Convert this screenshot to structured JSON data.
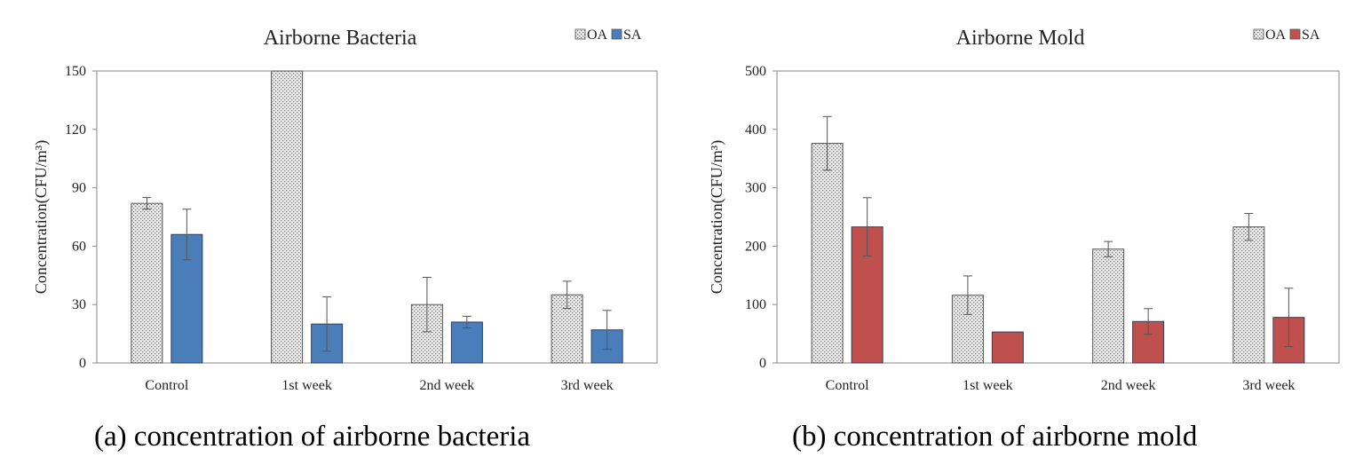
{
  "chart_data": [
    {
      "type": "bar",
      "title": "Airborne Bacteria",
      "ylabel": "Concentration(CFU/m³)",
      "xlabel": "",
      "categories": [
        "Control",
        "1st week",
        "2nd week",
        "3rd week"
      ],
      "ylim": [
        0,
        150
      ],
      "yticks": [
        0,
        30,
        60,
        90,
        120,
        150
      ],
      "grid": false,
      "legend_position": "top-right",
      "series": [
        {
          "name": "OA",
          "values": [
            82,
            150,
            30,
            35
          ],
          "errors": [
            3,
            0,
            14,
            7
          ],
          "color": "#e4e4e4",
          "pattern": "dotted"
        },
        {
          "name": "SA",
          "values": [
            66,
            20,
            21,
            17
          ],
          "errors": [
            13,
            14,
            3,
            10
          ],
          "color": "#4a7ebb",
          "pattern": "solid"
        }
      ],
      "caption": "(a) concentration of airborne bacteria"
    },
    {
      "type": "bar",
      "title": "Airborne Mold",
      "ylabel": "Concentration(CFU/m³)",
      "xlabel": "",
      "categories": [
        "Control",
        "1st week",
        "2nd week",
        "3rd week"
      ],
      "ylim": [
        0,
        500
      ],
      "yticks": [
        0,
        100,
        200,
        300,
        400,
        500
      ],
      "grid": false,
      "legend_position": "top-right",
      "series": [
        {
          "name": "OA",
          "values": [
            376,
            116,
            195,
            233
          ],
          "errors": [
            46,
            33,
            13,
            23
          ],
          "color": "#dcdcdc",
          "pattern": "dotted"
        },
        {
          "name": "SA",
          "values": [
            233,
            53,
            71,
            78
          ],
          "errors": [
            50,
            0,
            22,
            50
          ],
          "color": "#c0504d",
          "pattern": "solid"
        }
      ],
      "caption": "(b) concentration of airborne mold"
    }
  ]
}
